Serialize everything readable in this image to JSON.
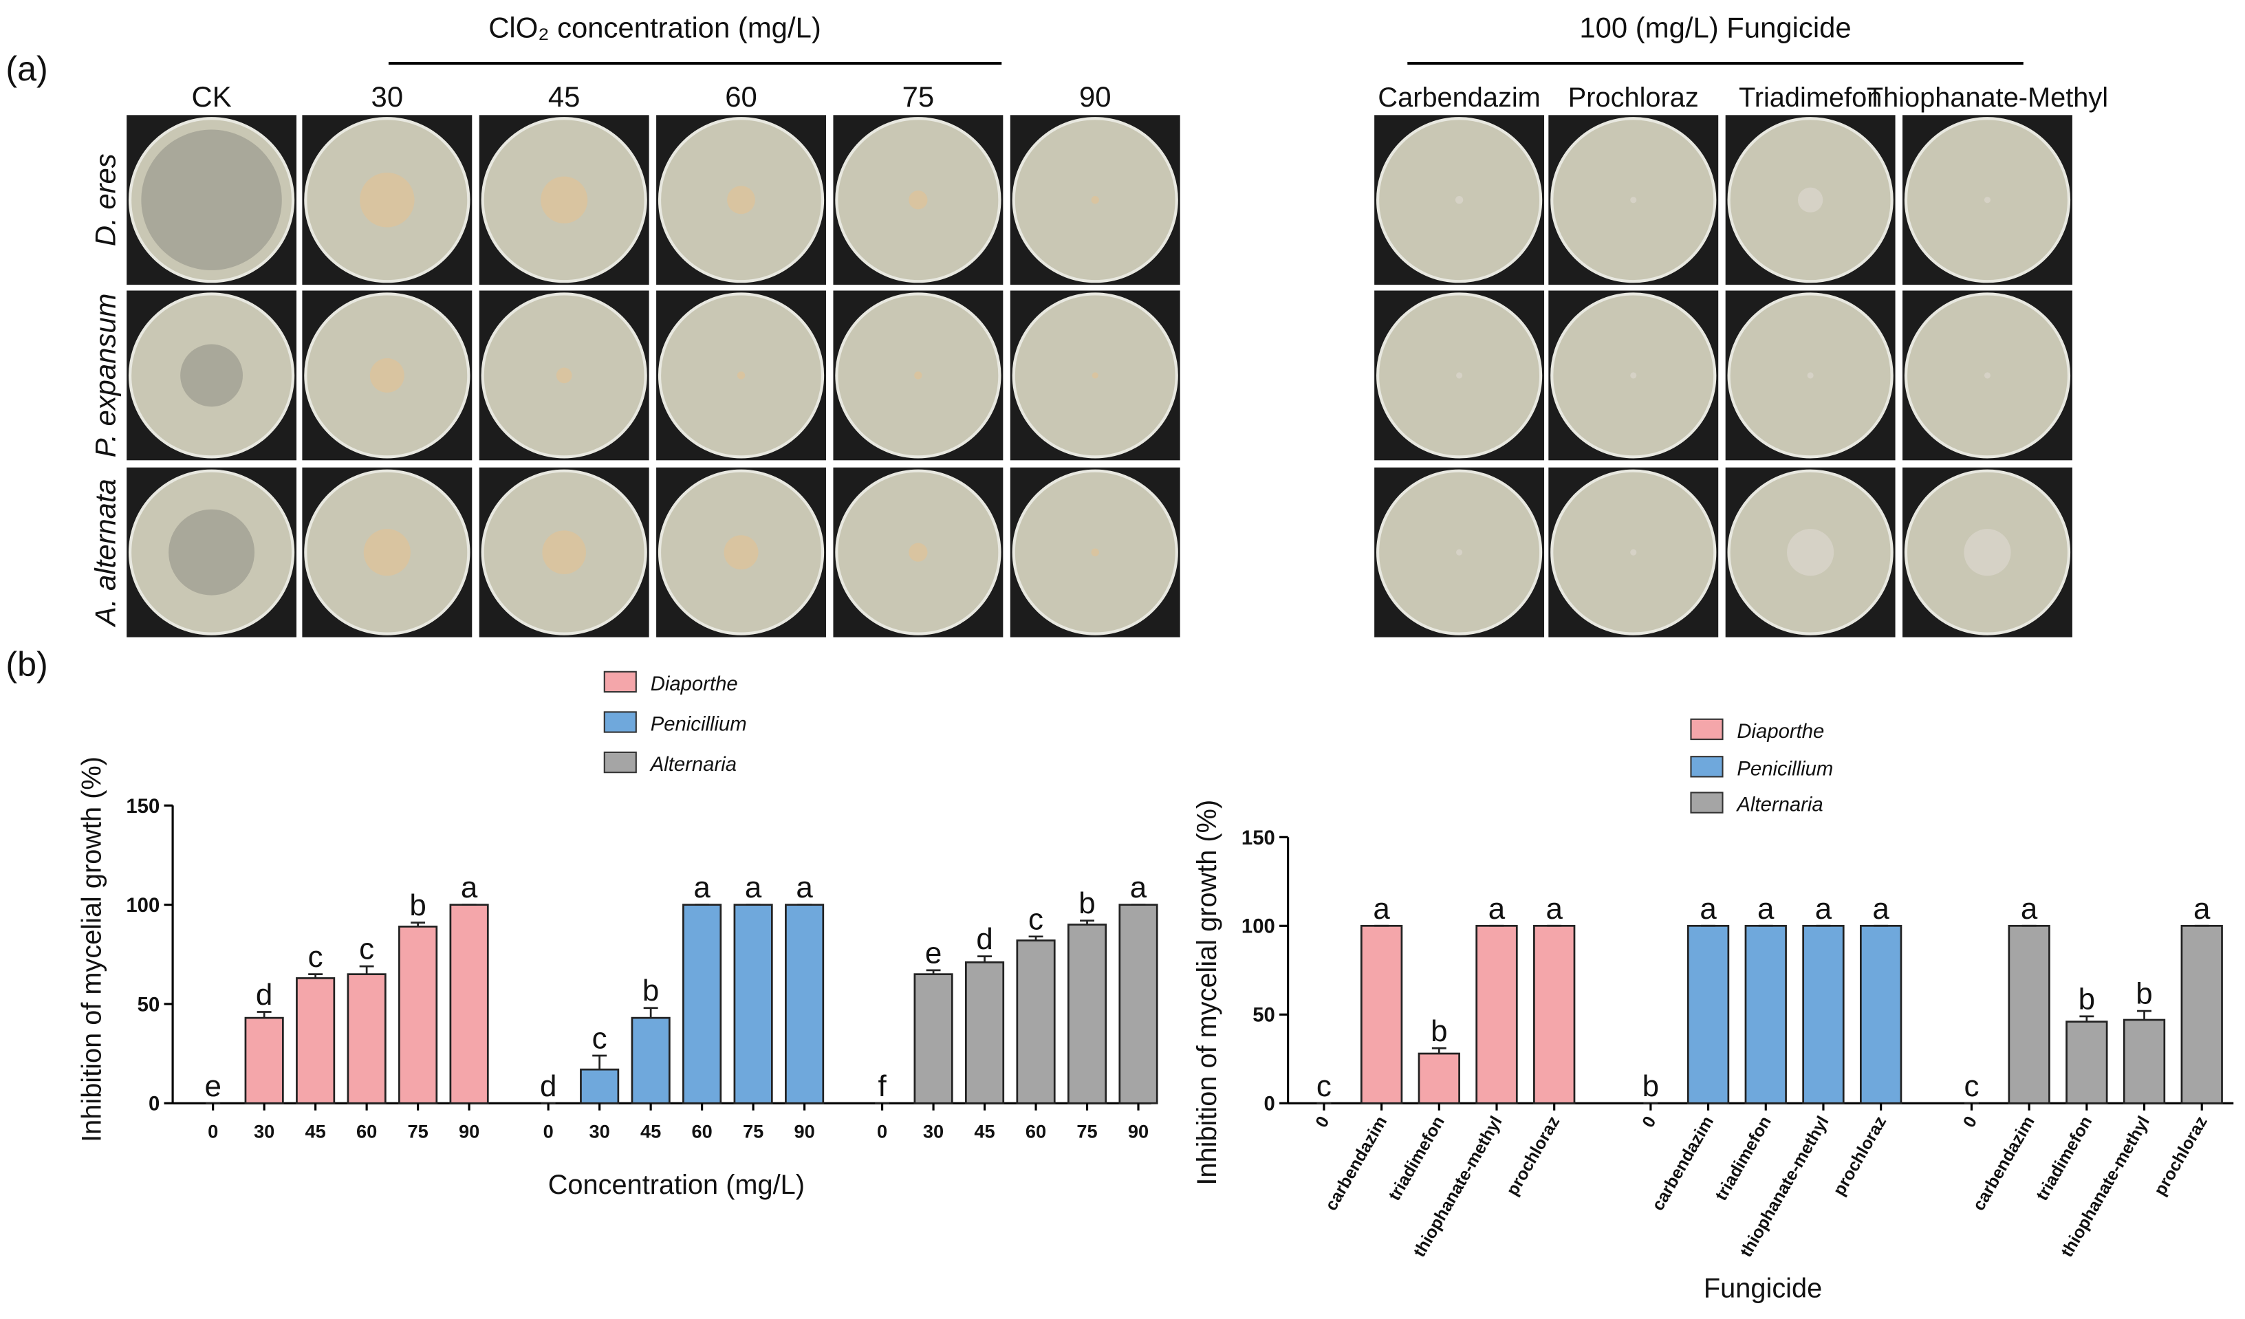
{
  "panel_a": {
    "label": "(a)",
    "clo2_header": "ClO₂ concentration (mg/L)",
    "columns": [
      "CK",
      "30",
      "45",
      "60",
      "75",
      "90"
    ],
    "fungicide_header": "100 (mg/L) Fungicide",
    "fungicides": [
      "Carbendazim",
      "Prochloraz",
      "Triadimefon",
      "Thiophanate-Methyl"
    ],
    "rows": [
      "D. eres",
      "P. expansum",
      "A. alternata"
    ]
  },
  "panel_b": {
    "label": "(b)"
  },
  "chart_data": [
    {
      "type": "bar",
      "y_label": "Inhibition of mycelial growth (%)",
      "x_label": "Concentration (mg/L)",
      "categories": [
        "0",
        "30",
        "45",
        "60",
        "75",
        "90"
      ],
      "ylim": [
        0,
        150
      ],
      "yticks": [
        0,
        50,
        100,
        150
      ],
      "series": [
        {
          "name": "Diaporthe",
          "color": "#f4a6aa",
          "values": [
            0,
            43,
            63,
            65,
            89,
            100
          ],
          "errors": [
            0,
            3,
            2,
            4,
            2,
            0
          ],
          "letters": [
            "e",
            "d",
            "c",
            "c",
            "b",
            "a"
          ]
        },
        {
          "name": "Penicillium",
          "color": "#6fa8dc",
          "values": [
            0,
            17,
            43,
            100,
            100,
            100
          ],
          "errors": [
            0,
            7,
            5,
            0,
            0,
            0
          ],
          "letters": [
            "d",
            "c",
            "b",
            "a",
            "a",
            "a"
          ]
        },
        {
          "name": "Alternaria",
          "color": "#a5a5a5",
          "values": [
            0,
            65,
            71,
            82,
            90,
            100
          ],
          "errors": [
            0,
            2,
            3,
            2,
            2,
            0
          ],
          "letters": [
            "f",
            "e",
            "d",
            "c",
            "b",
            "a"
          ]
        }
      ]
    },
    {
      "type": "bar",
      "y_label": "Inhibition of mycelial growth (%)",
      "x_label": "Fungicide",
      "categories": [
        "0",
        "carbendazim",
        "triadimefon",
        "thiophanate-methyl",
        "prochloraz"
      ],
      "ylim": [
        0,
        150
      ],
      "yticks": [
        0,
        50,
        100,
        150
      ],
      "series": [
        {
          "name": "Diaporthe",
          "color": "#f4a6aa",
          "values": [
            0,
            100,
            28,
            100,
            100
          ],
          "errors": [
            0,
            0,
            3,
            0,
            0
          ],
          "letters": [
            "c",
            "a",
            "b",
            "a",
            "a"
          ]
        },
        {
          "name": "Penicillium",
          "color": "#6fa8dc",
          "values": [
            0,
            100,
            100,
            100,
            100
          ],
          "errors": [
            0,
            0,
            0,
            0,
            0
          ],
          "letters": [
            "b",
            "a",
            "a",
            "a",
            "a"
          ]
        },
        {
          "name": "Alternaria",
          "color": "#a5a5a5",
          "values": [
            0,
            100,
            46,
            47,
            100
          ],
          "errors": [
            0,
            0,
            3,
            5,
            0
          ],
          "letters": [
            "c",
            "a",
            "b",
            "b",
            "a"
          ]
        }
      ]
    }
  ]
}
